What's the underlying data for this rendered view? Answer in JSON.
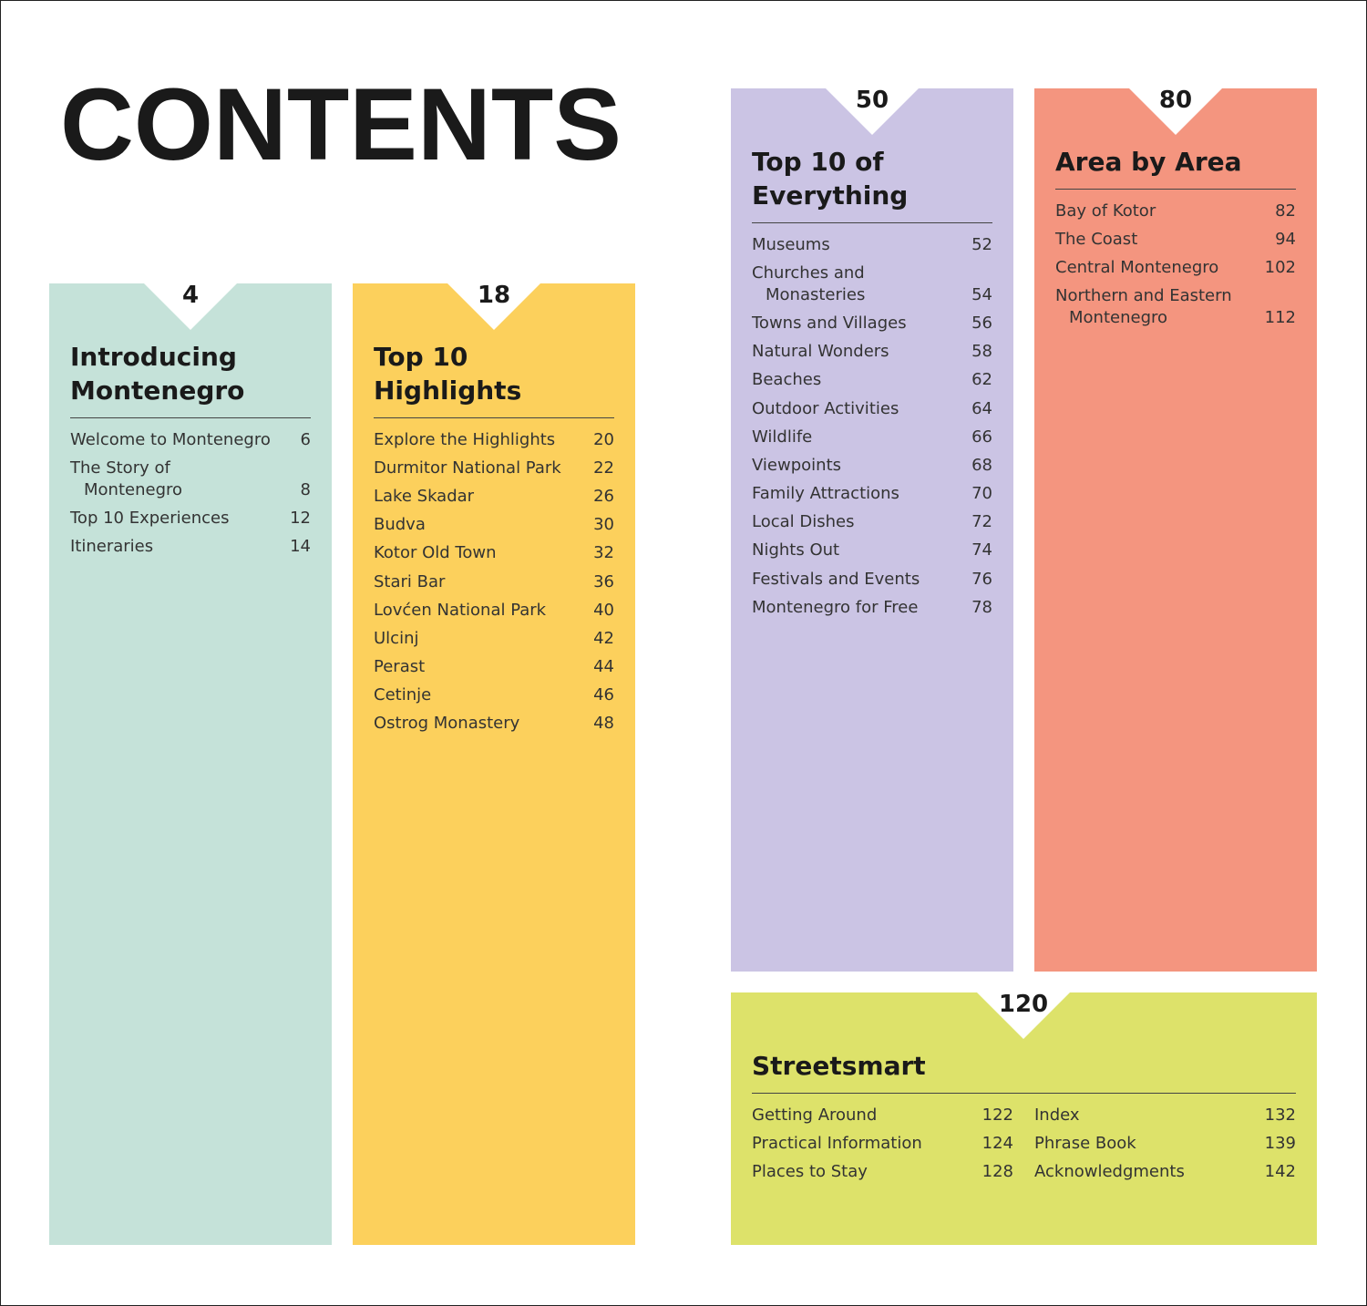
{
  "title": "CONTENTS",
  "sections": [
    {
      "page": "4",
      "title": "Introducing Montenegro",
      "columns": [
        [
          {
            "label": "Welcome to Montenegro",
            "page": "6"
          },
          {
            "label": "The Story of Montenegro",
            "page": "8"
          },
          {
            "label": "Top 10 Experiences",
            "page": "12"
          },
          {
            "label": "Itineraries",
            "page": "14"
          }
        ]
      ]
    },
    {
      "page": "18",
      "title": "Top 10 Highlights",
      "columns": [
        [
          {
            "label": "Explore the Highlights",
            "page": "20"
          },
          {
            "label": "Durmitor National Park",
            "page": "22"
          },
          {
            "label": "Lake Skadar",
            "page": "26"
          },
          {
            "label": "Budva",
            "page": "30"
          },
          {
            "label": "Kotor Old Town",
            "page": "32"
          },
          {
            "label": "Stari Bar",
            "page": "36"
          },
          {
            "label": "Lovćen National Park",
            "page": "40"
          },
          {
            "label": "Ulcinj",
            "page": "42"
          },
          {
            "label": "Perast",
            "page": "44"
          },
          {
            "label": "Cetinje",
            "page": "46"
          },
          {
            "label": "Ostrog Monastery",
            "page": "48"
          }
        ]
      ]
    },
    {
      "page": "50",
      "title": "Top 10 of Everything",
      "columns": [
        [
          {
            "label": "Museums",
            "page": "52"
          },
          {
            "label": "Churches and Monasteries",
            "page": "54"
          },
          {
            "label": "Towns and Villages",
            "page": "56"
          },
          {
            "label": "Natural Wonders",
            "page": "58"
          },
          {
            "label": "Beaches",
            "page": "62"
          },
          {
            "label": "Outdoor Activities",
            "page": "64"
          },
          {
            "label": "Wildlife",
            "page": "66"
          },
          {
            "label": "Viewpoints",
            "page": "68"
          },
          {
            "label": "Family Attractions",
            "page": "70"
          },
          {
            "label": "Local Dishes",
            "page": "72"
          },
          {
            "label": "Nights Out",
            "page": "74"
          },
          {
            "label": "Festivals and Events",
            "page": "76"
          },
          {
            "label": "Montenegro for Free",
            "page": "78"
          }
        ]
      ]
    },
    {
      "page": "80",
      "title": "Area by Area",
      "columns": [
        [
          {
            "label": "Bay of Kotor",
            "page": "82"
          },
          {
            "label": "The Coast",
            "page": "94"
          },
          {
            "label": "Central Montenegro",
            "page": "102"
          },
          {
            "label": "Northern and Eastern Montenegro",
            "page": "112"
          }
        ]
      ]
    },
    {
      "page": "120",
      "title": "Streetsmart",
      "columns": [
        [
          {
            "label": "Getting Around",
            "page": "122"
          },
          {
            "label": "Practical Information",
            "page": "124"
          },
          {
            "label": "Places to Stay",
            "page": "128"
          }
        ],
        [
          {
            "label": "Index",
            "page": "132"
          },
          {
            "label": "Phrase Book",
            "page": "139"
          },
          {
            "label": "Acknowledgments",
            "page": "142"
          }
        ]
      ]
    }
  ]
}
